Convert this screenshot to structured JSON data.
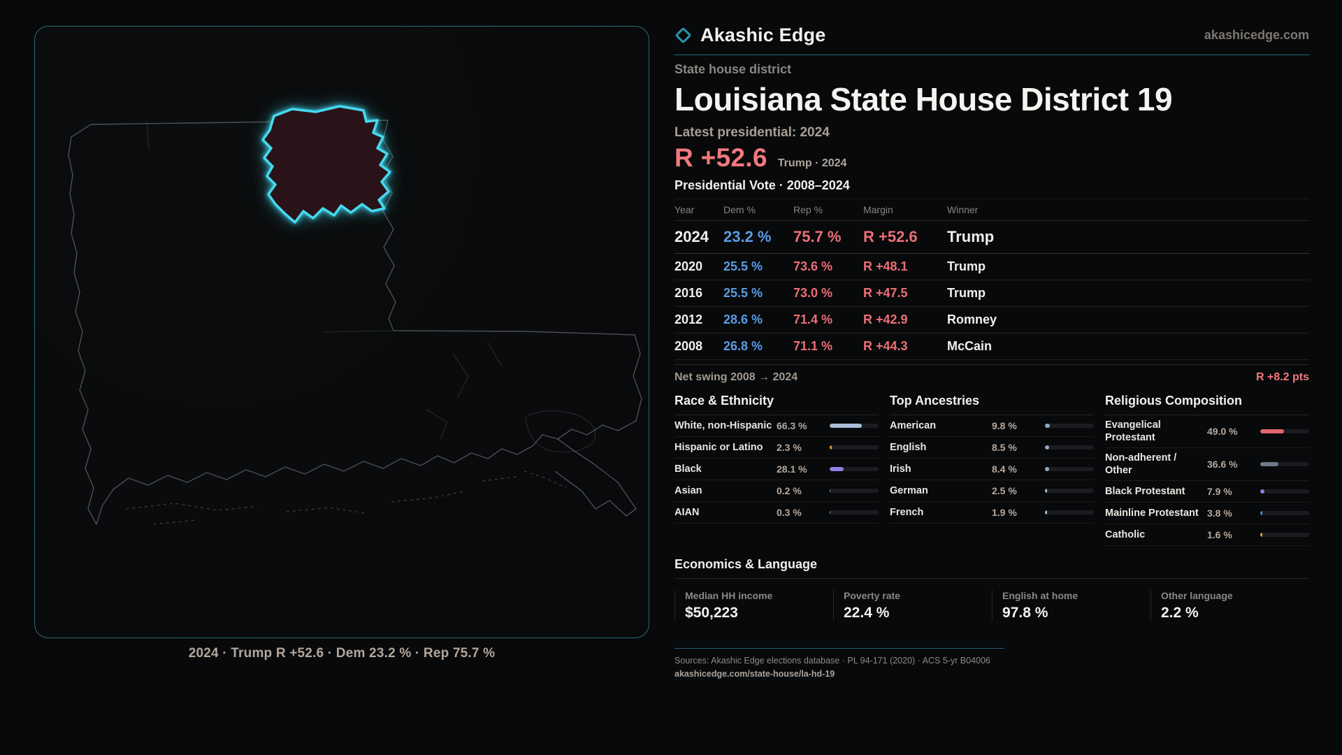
{
  "brand": {
    "name": "Akashic Edge",
    "site": "akashicedge.com"
  },
  "map": {
    "caption": "2024 · Trump R +52.6 · Dem 23.2 % · Rep 75.7 %"
  },
  "header": {
    "kicker": "State house district",
    "title": "Louisiana State House District 19",
    "latest_label": "Latest presidential: 2024",
    "headline_margin": "R +52.6",
    "headline_context": "Trump · 2024"
  },
  "vote_table": {
    "title": "Presidential Vote · 2008–2024",
    "columns": [
      "Year",
      "Dem %",
      "Rep %",
      "Margin",
      "Winner"
    ],
    "rows": [
      {
        "year": "2024",
        "dem": "23.2 %",
        "rep": "75.7 %",
        "margin": "R +52.6",
        "winner": "Trump"
      },
      {
        "year": "2020",
        "dem": "25.5 %",
        "rep": "73.6 %",
        "margin": "R +48.1",
        "winner": "Trump"
      },
      {
        "year": "2016",
        "dem": "25.5 %",
        "rep": "73.0 %",
        "margin": "R +47.5",
        "winner": "Trump"
      },
      {
        "year": "2012",
        "dem": "28.6 %",
        "rep": "71.4 %",
        "margin": "R +42.9",
        "winner": "Romney"
      },
      {
        "year": "2008",
        "dem": "26.8 %",
        "rep": "71.1 %",
        "margin": "R +44.3",
        "winner": "McCain"
      }
    ]
  },
  "net_swing": {
    "label": "Net swing 2008 → 2024",
    "value": "R +8.2 pts"
  },
  "race": {
    "title": "Race & Ethnicity",
    "items": [
      {
        "label": "White, non-Hispanic",
        "value": "66.3 %",
        "pct": 66.3,
        "color": "#a9bed9"
      },
      {
        "label": "Hispanic or Latino",
        "value": "2.3 %",
        "pct": 2.3,
        "color": "#e09b2d"
      },
      {
        "label": "Black",
        "value": "28.1 %",
        "pct": 28.1,
        "color": "#8f7fe3"
      },
      {
        "label": "Asian",
        "value": "0.2 %",
        "pct": 0.2,
        "color": "#9db2c9"
      },
      {
        "label": "AIAN",
        "value": "0.3 %",
        "pct": 0.3,
        "color": "#9db2c9"
      }
    ]
  },
  "ancestries": {
    "title": "Top Ancestries",
    "items": [
      {
        "label": "American",
        "value": "9.8 %",
        "pct": 9.8,
        "color": "#93a9c4"
      },
      {
        "label": "English",
        "value": "8.5 %",
        "pct": 8.5,
        "color": "#93a9c4"
      },
      {
        "label": "Irish",
        "value": "8.4 %",
        "pct": 8.4,
        "color": "#93a9c4"
      },
      {
        "label": "German",
        "value": "2.5 %",
        "pct": 2.5,
        "color": "#aebdd0"
      },
      {
        "label": "French",
        "value": "1.9 %",
        "pct": 1.9,
        "color": "#aebdd0"
      }
    ]
  },
  "religion": {
    "title": "Religious Composition",
    "items": [
      {
        "label": "Evangelical Protestant",
        "value": "49.0 %",
        "pct": 49.0,
        "color": "#e2646c"
      },
      {
        "label": "Non-adherent / Other",
        "value": "36.6 %",
        "pct": 36.6,
        "color": "#6d7889"
      },
      {
        "label": "Black Protestant",
        "value": "7.9 %",
        "pct": 7.9,
        "color": "#8f7fe3"
      },
      {
        "label": "Mainline Protestant",
        "value": "3.8 %",
        "pct": 3.8,
        "color": "#3f8fe0"
      },
      {
        "label": "Catholic",
        "value": "1.6 %",
        "pct": 1.6,
        "color": "#d9a23a"
      }
    ]
  },
  "economics": {
    "title": "Economics & Language",
    "stats": [
      {
        "label": "Median HH income",
        "value": "$50,223"
      },
      {
        "label": "Poverty rate",
        "value": "22.4 %"
      },
      {
        "label": "English at home",
        "value": "97.8 %"
      },
      {
        "label": "Other language",
        "value": "2.2 %"
      }
    ]
  },
  "footer": {
    "sources": "Sources: Akashic Edge elections database · PL 94-171 (2020) · ACS 5-yr B04006",
    "permalink": "akashicedge.com/state-house/la-hd-19"
  },
  "accent_colors": {
    "cyan": "#46d9ef",
    "dem_blue": "#5b9ce6",
    "rep_red": "#ec6f76",
    "margin_pink": "#f2787f"
  }
}
